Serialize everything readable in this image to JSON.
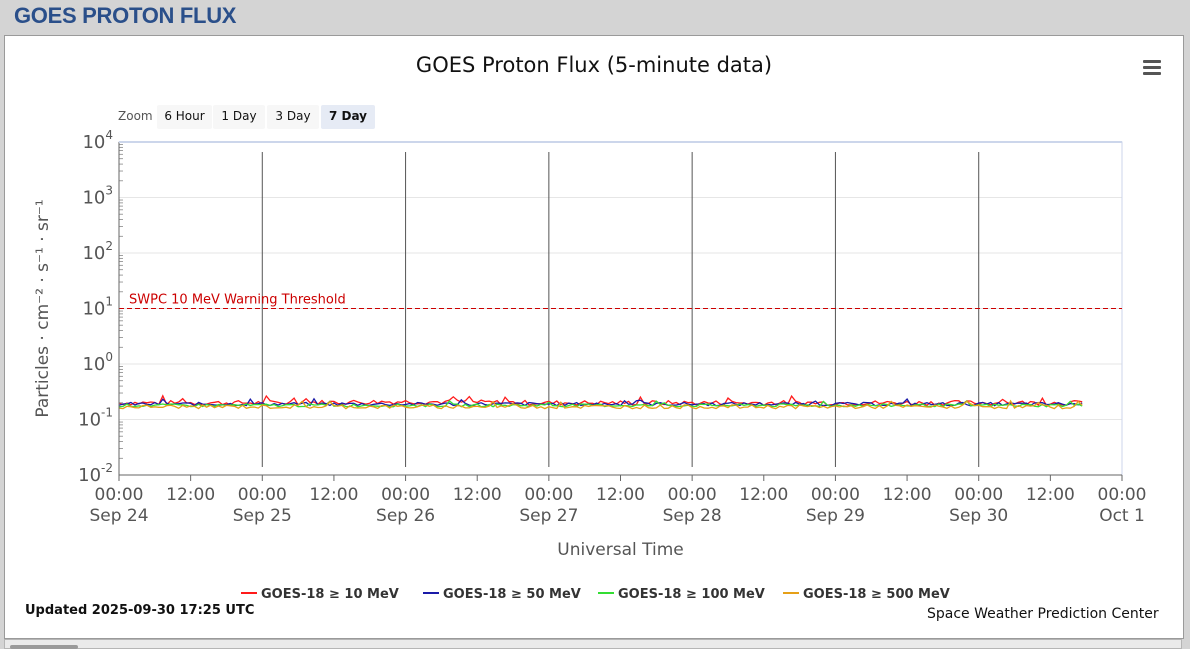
{
  "header": {
    "title": "GOES PROTON FLUX"
  },
  "chart_ui": {
    "zoom_label": "Zoom",
    "zoom_buttons": [
      {
        "label": "6 Hour",
        "active": false
      },
      {
        "label": "1 Day",
        "active": false
      },
      {
        "label": "3 Day",
        "active": false
      },
      {
        "label": "7 Day",
        "active": true
      }
    ],
    "menu_icon": "hamburger-menu-icon",
    "updated": "Updated 2025-09-30 17:25 UTC",
    "credit": "Space Weather Prediction Center"
  },
  "chart_data": {
    "type": "line",
    "title": "GOES Proton Flux (5-minute data)",
    "xlabel": "Universal Time",
    "ylabel": "Particles · cm⁻² · s⁻¹ · sr⁻¹",
    "y_scale": "log",
    "ylim": [
      0.01,
      10000
    ],
    "y_ticks": [
      {
        "value": 0.01,
        "exp": "-2"
      },
      {
        "value": 0.1,
        "exp": "-1"
      },
      {
        "value": 1,
        "exp": "0"
      },
      {
        "value": 10,
        "exp": "1"
      },
      {
        "value": 100,
        "exp": "2"
      },
      {
        "value": 1000,
        "exp": "3"
      },
      {
        "value": 10000,
        "exp": "4"
      }
    ],
    "xlim": [
      "2025-09-24 00:00",
      "2025-10-01 00:00"
    ],
    "x_ticks": [
      {
        "time": "00:00",
        "date": "Sep 24"
      },
      {
        "time": "12:00",
        "date": ""
      },
      {
        "time": "00:00",
        "date": "Sep 25"
      },
      {
        "time": "12:00",
        "date": ""
      },
      {
        "time": "00:00",
        "date": "Sep 26"
      },
      {
        "time": "12:00",
        "date": ""
      },
      {
        "time": "00:00",
        "date": "Sep 27"
      },
      {
        "time": "12:00",
        "date": ""
      },
      {
        "time": "00:00",
        "date": "Sep 28"
      },
      {
        "time": "12:00",
        "date": ""
      },
      {
        "time": "00:00",
        "date": "Sep 29"
      },
      {
        "time": "12:00",
        "date": ""
      },
      {
        "time": "00:00",
        "date": "Sep 30"
      },
      {
        "time": "12:00",
        "date": ""
      },
      {
        "time": "00:00",
        "date": "Oct 1"
      }
    ],
    "threshold": {
      "label": "SWPC 10 MeV Warning Threshold",
      "value": 10,
      "color": "#cc0000"
    },
    "series": [
      {
        "name": "GOES-18 ≥ 10 MeV",
        "color": "#ff1a1a",
        "x": [
          "2025-09-24 00:00",
          "2025-09-25 00:00",
          "2025-09-26 00:00",
          "2025-09-27 00:00",
          "2025-09-28 00:00",
          "2025-09-29 00:00",
          "2025-09-30 00:00",
          "2025-09-30 17:25"
        ],
        "values": [
          0.2,
          0.2,
          0.21,
          0.2,
          0.2,
          0.2,
          0.2,
          0.2
        ]
      },
      {
        "name": "GOES-18 ≥ 50 MeV",
        "color": "#1a1aa8",
        "x": [
          "2025-09-24 00:00",
          "2025-09-25 00:00",
          "2025-09-26 00:00",
          "2025-09-27 00:00",
          "2025-09-28 00:00",
          "2025-09-29 00:00",
          "2025-09-30 00:00",
          "2025-09-30 17:25"
        ],
        "values": [
          0.19,
          0.19,
          0.19,
          0.19,
          0.19,
          0.19,
          0.19,
          0.19
        ]
      },
      {
        "name": "GOES-18 ≥ 100 MeV",
        "color": "#33dd33",
        "x": [
          "2025-09-24 00:00",
          "2025-09-25 00:00",
          "2025-09-26 00:00",
          "2025-09-27 00:00",
          "2025-09-28 00:00",
          "2025-09-29 00:00",
          "2025-09-30 00:00",
          "2025-09-30 17:25"
        ],
        "values": [
          0.18,
          0.18,
          0.18,
          0.18,
          0.18,
          0.18,
          0.18,
          0.18
        ]
      },
      {
        "name": "GOES-18 ≥ 500 MeV",
        "color": "#e6a017",
        "x": [
          "2025-09-24 00:00",
          "2025-09-25 00:00",
          "2025-09-26 00:00",
          "2025-09-27 00:00",
          "2025-09-28 00:00",
          "2025-09-29 00:00",
          "2025-09-30 00:00",
          "2025-09-30 17:25"
        ],
        "values": [
          0.17,
          0.17,
          0.17,
          0.17,
          0.17,
          0.17,
          0.17,
          0.17
        ]
      }
    ],
    "grid": true,
    "legend": "bottom-center"
  }
}
